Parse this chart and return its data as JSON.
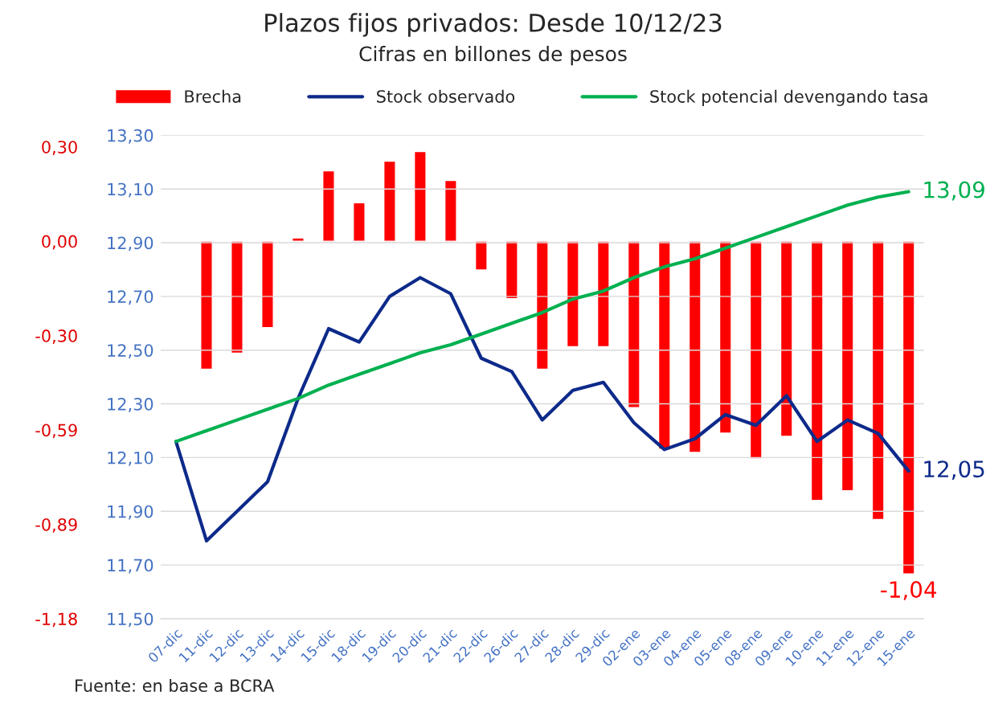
{
  "chart_data": {
    "type": "bar",
    "title": "Plazos fijos privados: Desde 10/12/23",
    "subtitle": "Cifras en billones de pesos",
    "categories": [
      "07-dic",
      "11-dic",
      "12-dic",
      "13-dic",
      "14-dic",
      "15-dic",
      "18-dic",
      "19-dic",
      "20-dic",
      "21-dic",
      "22-dic",
      "26-dic",
      "27-dic",
      "28-dic",
      "29-dic",
      "02-ene",
      "03-ene",
      "04-ene",
      "05-ene",
      "08-ene",
      "09-ene",
      "10-ene",
      "11-ene",
      "12-ene",
      "15-ene"
    ],
    "series": [
      {
        "name": "Brecha",
        "color": "#ff0000",
        "values": [
          null,
          -0.4,
          -0.35,
          -0.27,
          0.01,
          0.22,
          0.12,
          0.25,
          0.28,
          0.19,
          -0.09,
          -0.18,
          -0.4,
          -0.33,
          -0.33,
          -0.52,
          -0.65,
          -0.66,
          -0.6,
          -0.68,
          -0.61,
          -0.81,
          -0.78,
          -0.87,
          -1.04
        ],
        "value_labels": [
          null,
          null,
          null,
          null,
          null,
          null,
          null,
          null,
          null,
          null,
          null,
          null,
          null,
          null,
          null,
          null,
          null,
          null,
          null,
          null,
          null,
          null,
          null,
          null,
          "-1,04"
        ]
      },
      {
        "name": "Stock observado",
        "type": "line",
        "axis": "y2",
        "color": "#0d2a8a",
        "values": [
          12.16,
          11.79,
          11.9,
          12.01,
          12.32,
          12.58,
          12.53,
          12.7,
          12.77,
          12.71,
          12.47,
          12.42,
          12.24,
          12.35,
          12.38,
          12.23,
          12.13,
          12.17,
          12.26,
          12.22,
          12.33,
          12.16,
          12.24,
          12.19,
          12.05
        ],
        "value_labels": [
          null,
          null,
          null,
          null,
          null,
          null,
          null,
          null,
          null,
          null,
          null,
          null,
          null,
          null,
          null,
          null,
          null,
          null,
          null,
          null,
          null,
          null,
          null,
          null,
          "12,05"
        ]
      },
      {
        "name": "Stock potencial devengando tasa",
        "type": "line",
        "axis": "y2",
        "color": "#00b050",
        "values": [
          12.16,
          12.2,
          12.24,
          12.28,
          12.32,
          12.37,
          12.41,
          12.45,
          12.49,
          12.52,
          12.56,
          12.6,
          12.64,
          12.69,
          12.72,
          12.77,
          12.81,
          12.84,
          12.88,
          12.92,
          12.96,
          13.0,
          13.04,
          13.07,
          13.09
        ],
        "value_labels": [
          null,
          null,
          null,
          null,
          null,
          null,
          null,
          null,
          null,
          null,
          null,
          null,
          null,
          null,
          null,
          null,
          null,
          null,
          null,
          null,
          null,
          null,
          null,
          null,
          "13,09"
        ]
      }
    ],
    "ylim": [
      -1.18,
      0.331
    ],
    "yticks": [
      {
        "value": -1.18,
        "label": "-1,18"
      },
      {
        "value": -0.885,
        "label": "-0,89"
      },
      {
        "value": -0.59,
        "label": "-0,59"
      },
      {
        "value": -0.295,
        "label": "-0,30"
      },
      {
        "value": 0,
        "label": "0,00"
      },
      {
        "value": 0.295,
        "label": "0,30"
      }
    ],
    "y2lim": [
      11.5,
      13.3
    ],
    "y2ticks": [
      {
        "value": 11.5,
        "label": "11,50"
      },
      {
        "value": 11.7,
        "label": "11,70"
      },
      {
        "value": 11.9,
        "label": "11,90"
      },
      {
        "value": 12.1,
        "label": "12,10"
      },
      {
        "value": 12.3,
        "label": "12,30"
      },
      {
        "value": 12.5,
        "label": "12,50"
      },
      {
        "value": 12.7,
        "label": "12,70"
      },
      {
        "value": 12.9,
        "label": "12,90"
      },
      {
        "value": 13.1,
        "label": "13,10"
      },
      {
        "value": 13.3,
        "label": "13,30"
      }
    ],
    "grid": "y",
    "legend": "top",
    "marker": "none",
    "line_style": "solid",
    "annotations": [
      "Fuente: en base a BCRA"
    ]
  }
}
